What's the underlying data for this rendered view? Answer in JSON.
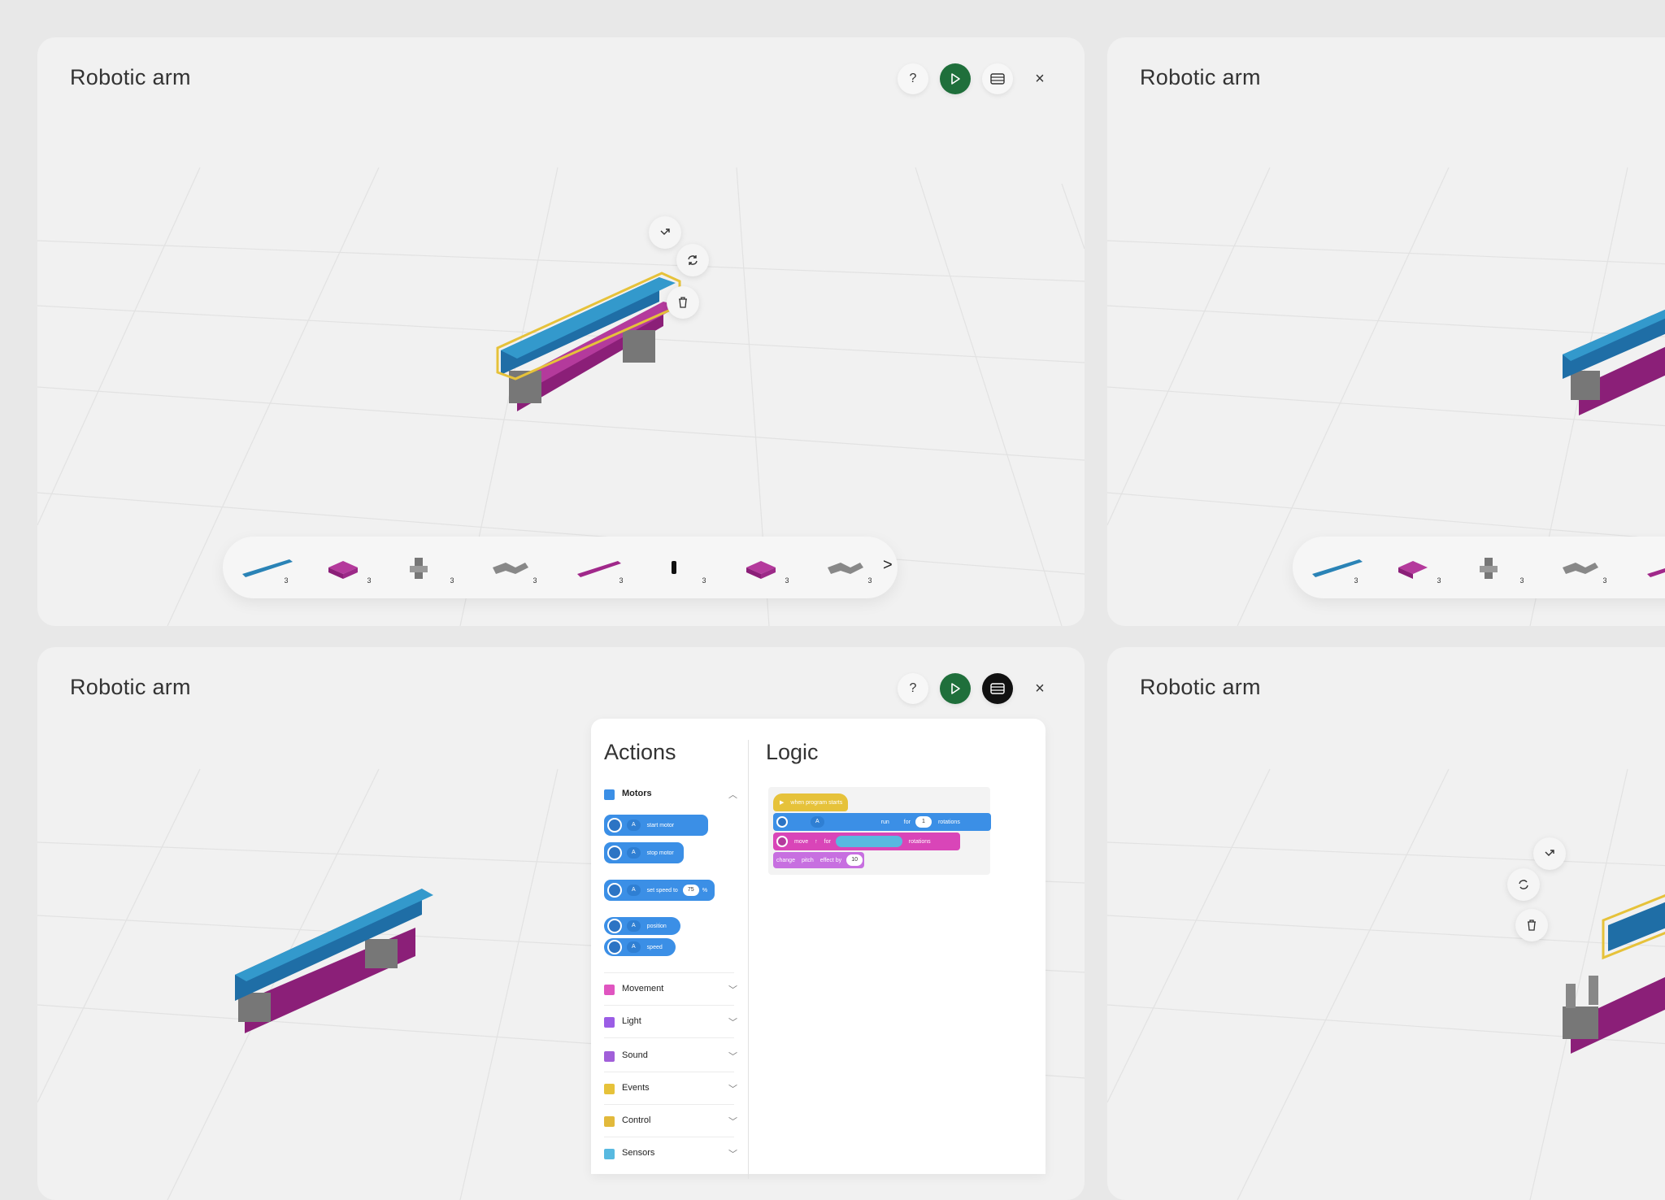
{
  "colors": {
    "brick_blue": "#2a83b6",
    "brick_magenta": "#a0288a",
    "brick_gray": "#7a7a7a",
    "highlight": "#e6c23a",
    "play_green": "#1f6f3b"
  },
  "cards": [
    {
      "title": "Robotic arm"
    },
    {
      "title": "Robotic arm"
    },
    {
      "title": "Robotic arm"
    },
    {
      "title": "Robotic arm"
    }
  ],
  "toolbar": {
    "help_icon": "?",
    "play_icon": "play-icon",
    "blocks_icon": "blocks-icon",
    "close_icon": "×"
  },
  "floating_actions": [
    "move-arrow-icon",
    "rotate-icon",
    "trash-icon"
  ],
  "tray": {
    "items": [
      {
        "name": "blue-beam",
        "qty": "3"
      },
      {
        "name": "magenta-plate",
        "qty": "3"
      },
      {
        "name": "gray-connector",
        "qty": "3"
      },
      {
        "name": "gray-axle-joint",
        "qty": "3"
      },
      {
        "name": "magenta-beam",
        "qty": "3"
      },
      {
        "name": "black-pin",
        "qty": "3"
      },
      {
        "name": "magenta-plate-2",
        "qty": "3"
      },
      {
        "name": "gray-axle-joint-2",
        "qty": "3"
      }
    ],
    "next_label": ">"
  },
  "palette": {
    "actions_title": "Actions",
    "logic_title": "Logic",
    "motors_label": "Motors",
    "motor_blocks": [
      {
        "port": "A",
        "text": "start motor"
      },
      {
        "port": "A",
        "text": "stop motor"
      },
      {
        "port": "A",
        "text": "set speed to",
        "value": "75",
        "unit": "%"
      },
      {
        "port": "A",
        "text": "position"
      },
      {
        "port": "A",
        "text": "speed"
      }
    ],
    "categories": [
      {
        "label": "Movement",
        "color": "#e055c0"
      },
      {
        "label": "Light",
        "color": "#9b5de5"
      },
      {
        "label": "Sound",
        "color": "#a15fd9"
      },
      {
        "label": "Events",
        "color": "#e6c23a"
      },
      {
        "label": "Control",
        "color": "#e2b93b"
      },
      {
        "label": "Sensors",
        "color": "#58b9e0"
      }
    ],
    "logic_blocks": {
      "event": "when program starts",
      "motor_run": {
        "port": "A",
        "run": "run",
        "for": "for",
        "value": "1",
        "unit": "rotations"
      },
      "move": {
        "move": "move",
        "dir": "↑",
        "for": "for",
        "unit": "rotations"
      },
      "sound": {
        "change": "change",
        "prop": "pitch",
        "effect": "effect by",
        "value": "10"
      }
    }
  }
}
